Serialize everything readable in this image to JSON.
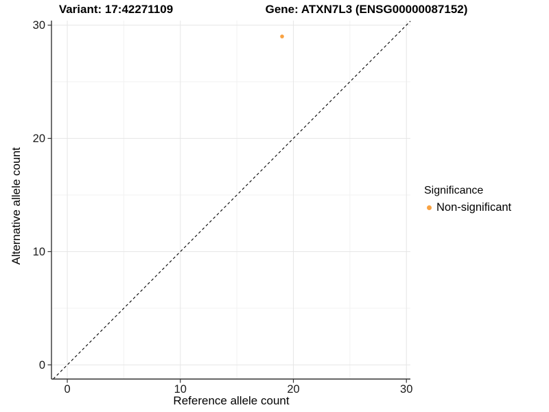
{
  "titles": {
    "variant": "Variant: 17:42271109",
    "gene": "Gene: ATXN7L3 (ENSG00000087152)"
  },
  "chart_data": {
    "type": "scatter",
    "xlabel": "Reference allele count",
    "ylabel": "Alternative allele count",
    "xlim": [
      -1.4,
      30.35
    ],
    "ylim": [
      -1.25,
      30.4
    ],
    "xticks": [
      0,
      10,
      20,
      30
    ],
    "yticks": [
      0,
      10,
      20,
      30
    ],
    "xticks_minor": [
      5,
      15,
      25
    ],
    "yticks_minor": [
      5,
      15,
      25
    ],
    "grid": true,
    "identity_line": {
      "shown": true,
      "style": "dashed",
      "color": "#000000"
    },
    "points": [
      {
        "x": 19,
        "y": 29,
        "series": "Non-significant"
      }
    ],
    "legend": {
      "position": "right",
      "title": "Significance",
      "items": [
        {
          "label": "Non-significant",
          "color": "#F9A242"
        }
      ]
    },
    "colors": {
      "background": "#FFFFFF",
      "axis_line": "#333333",
      "tick_mark": "#333333",
      "tick_label": "#1A1A1A",
      "grid_major": "#E6E6E6",
      "grid_minor": "#F2F2F2",
      "point_non_significant": "#F9A242"
    }
  }
}
